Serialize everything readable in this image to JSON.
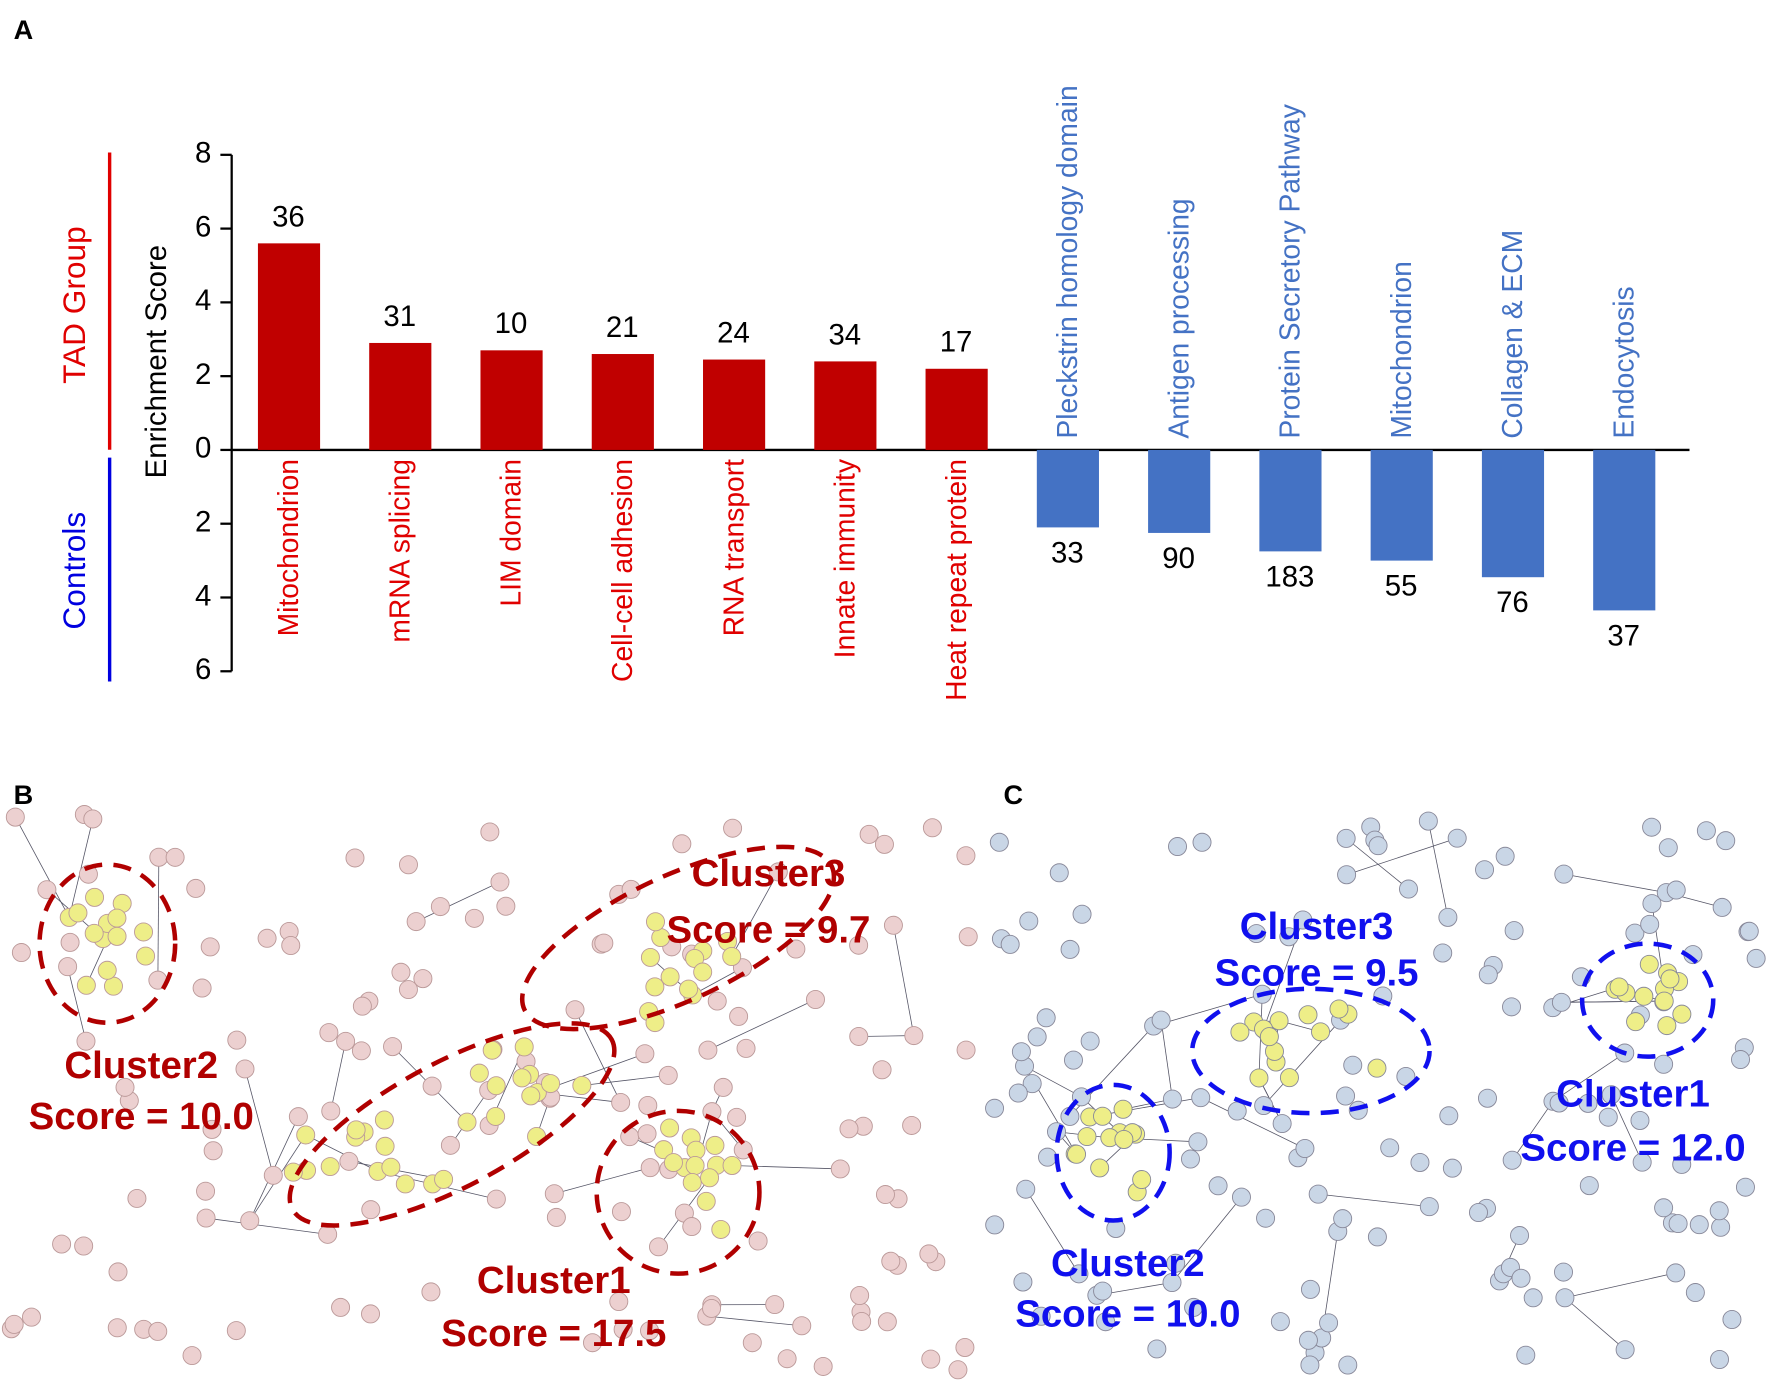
{
  "chart_data": {
    "type": "bar",
    "panel_labels": [
      "A",
      "B",
      "C"
    ],
    "ylabel": "Enrichment Score",
    "ylim": [
      -6,
      8
    ],
    "yticks": [
      8,
      6,
      4,
      2,
      0,
      {
        "value": -2,
        "label": "2"
      },
      {
        "value": -4,
        "label": "4"
      },
      {
        "value": -6,
        "label": "6"
      }
    ],
    "series": [
      {
        "name": "TAD Group",
        "color": "#c00000",
        "categories": [
          "Mitochondrion",
          "mRNA splicing",
          "LIM domain",
          "Cell-cell adhesion",
          "RNA transport",
          "Innate immunity",
          "Heat repeat protein"
        ],
        "values": [
          5.6,
          2.9,
          2.7,
          2.6,
          2.45,
          2.4,
          2.2
        ],
        "counts": [
          36,
          31,
          10,
          21,
          24,
          34,
          17
        ]
      },
      {
        "name": "Controls",
        "color": "#4472c4",
        "categories": [
          "Pleckstrin homology domain",
          "Antigen processing",
          "Protein Secretory Pathway",
          "Mitochondrion",
          "Collagen & ECM",
          "Endocytosis"
        ],
        "values": [
          -2.1,
          -2.25,
          -2.75,
          -3.0,
          -3.45,
          -4.35
        ],
        "counts": [
          33,
          90,
          183,
          55,
          76,
          37
        ]
      }
    ],
    "networks": [
      {
        "clusters": [
          {
            "name": "Cluster3",
            "score": "Score = 9.7"
          },
          {
            "name": "Cluster2",
            "score": "Score = 10.0"
          },
          {
            "name": "Cluster1",
            "score": "Score = 17.5"
          }
        ]
      },
      {
        "clusters": [
          {
            "name": "Cluster3",
            "score": "Score = 9.5"
          },
          {
            "name": "Cluster1",
            "score": "Score = 12.0"
          },
          {
            "name": "Cluster2",
            "score": "Score = 10.0"
          }
        ]
      }
    ]
  }
}
